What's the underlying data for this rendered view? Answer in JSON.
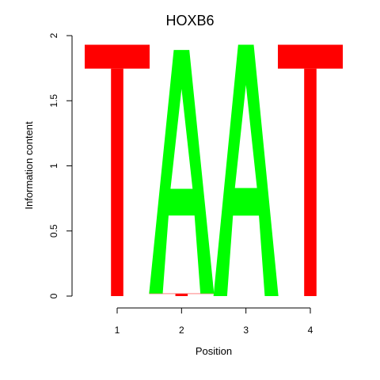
{
  "chart_data": {
    "type": "sequence-logo",
    "title": "HOXB6",
    "xlabel": "Position",
    "ylabel": "Information content",
    "ylim": [
      0,
      2
    ],
    "yticks": [
      "0",
      "0.5",
      "1",
      "1.5",
      "2"
    ],
    "ytick_values": [
      0,
      0.5,
      1,
      1.5,
      2
    ],
    "positions": [
      "1",
      "2",
      "3",
      "4"
    ],
    "columns": [
      {
        "position": 1,
        "stack": [
          {
            "letter": "T",
            "bits": 1.93
          }
        ]
      },
      {
        "position": 2,
        "stack": [
          {
            "letter": "T",
            "bits": 0.02
          },
          {
            "letter": "A",
            "bits": 1.87
          }
        ]
      },
      {
        "position": 3,
        "stack": [
          {
            "letter": "A",
            "bits": 1.93
          }
        ]
      },
      {
        "position": 4,
        "stack": [
          {
            "letter": "T",
            "bits": 1.93
          }
        ]
      }
    ],
    "letter_colors": {
      "A": "#00ff00",
      "T": "#ff0000"
    }
  }
}
